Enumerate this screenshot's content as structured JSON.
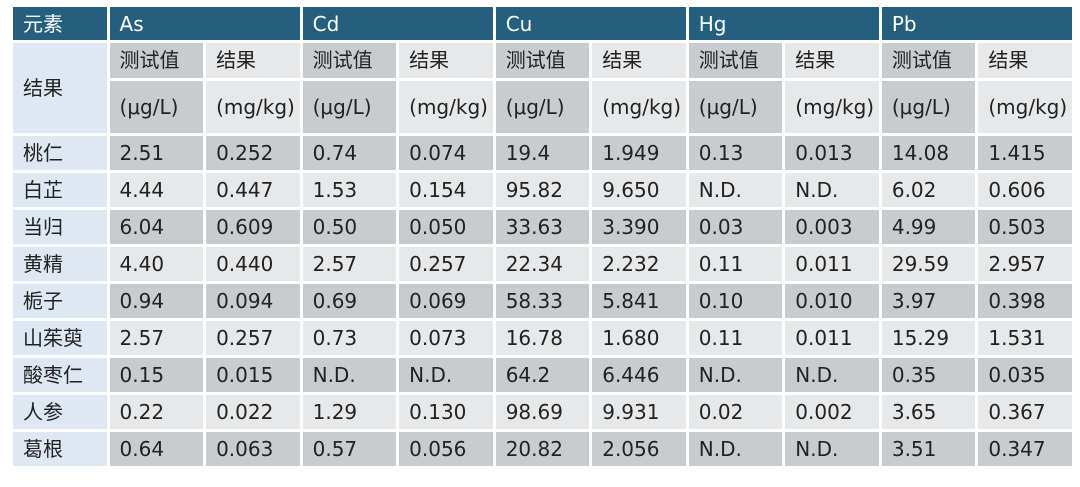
{
  "header": {
    "corner": "元素",
    "elements": [
      "As",
      "Cd",
      "Cu",
      "Hg",
      "Pb"
    ]
  },
  "subheader": {
    "row_label": "结果",
    "test_value": "测试值",
    "result": "结果",
    "unit_test": "(μg/L)",
    "unit_result": "(mg/kg)"
  },
  "rows": [
    {
      "name": "桃仁",
      "values": [
        "2.51",
        "0.252",
        "0.74",
        "0.074",
        "19.4",
        "1.949",
        "0.13",
        "0.013",
        "14.08",
        "1.415"
      ]
    },
    {
      "name": "白芷",
      "values": [
        "4.44",
        "0.447",
        "1.53",
        "0.154",
        "95.82",
        "9.650",
        "N.D.",
        "N.D.",
        "6.02",
        "0.606"
      ]
    },
    {
      "name": "当归",
      "values": [
        "6.04",
        "0.609",
        "0.50",
        "0.050",
        "33.63",
        "3.390",
        "0.03",
        "0.003",
        "4.99",
        "0.503"
      ]
    },
    {
      "name": "黄精",
      "values": [
        "4.40",
        "0.440",
        "2.57",
        "0.257",
        "22.34",
        "2.232",
        "0.11",
        "0.011",
        "29.59",
        "2.957"
      ]
    },
    {
      "name": "栀子",
      "values": [
        "0.94",
        "0.094",
        "0.69",
        "0.069",
        "58.33",
        "5.841",
        "0.10",
        "0.010",
        "3.97",
        "0.398"
      ]
    },
    {
      "name": "山茱萸",
      "values": [
        "2.57",
        "0.257",
        "0.73",
        "0.073",
        "16.78",
        "1.680",
        "0.11",
        "0.011",
        "15.29",
        "1.531"
      ]
    },
    {
      "name": "酸枣仁",
      "values": [
        "0.15",
        "0.015",
        "N.D.",
        "N.D.",
        "64.2",
        "6.446",
        "N.D.",
        "N.D.",
        "0.35",
        "0.035"
      ]
    },
    {
      "name": "人参",
      "values": [
        "0.22",
        "0.022",
        "1.29",
        "0.130",
        "98.69",
        "9.931",
        "0.02",
        "0.002",
        "3.65",
        "0.367"
      ]
    },
    {
      "name": "葛根",
      "values": [
        "0.64",
        "0.063",
        "0.57",
        "0.056",
        "20.82",
        "2.056",
        "N.D.",
        "N.D.",
        "3.51",
        "0.347"
      ]
    }
  ]
}
